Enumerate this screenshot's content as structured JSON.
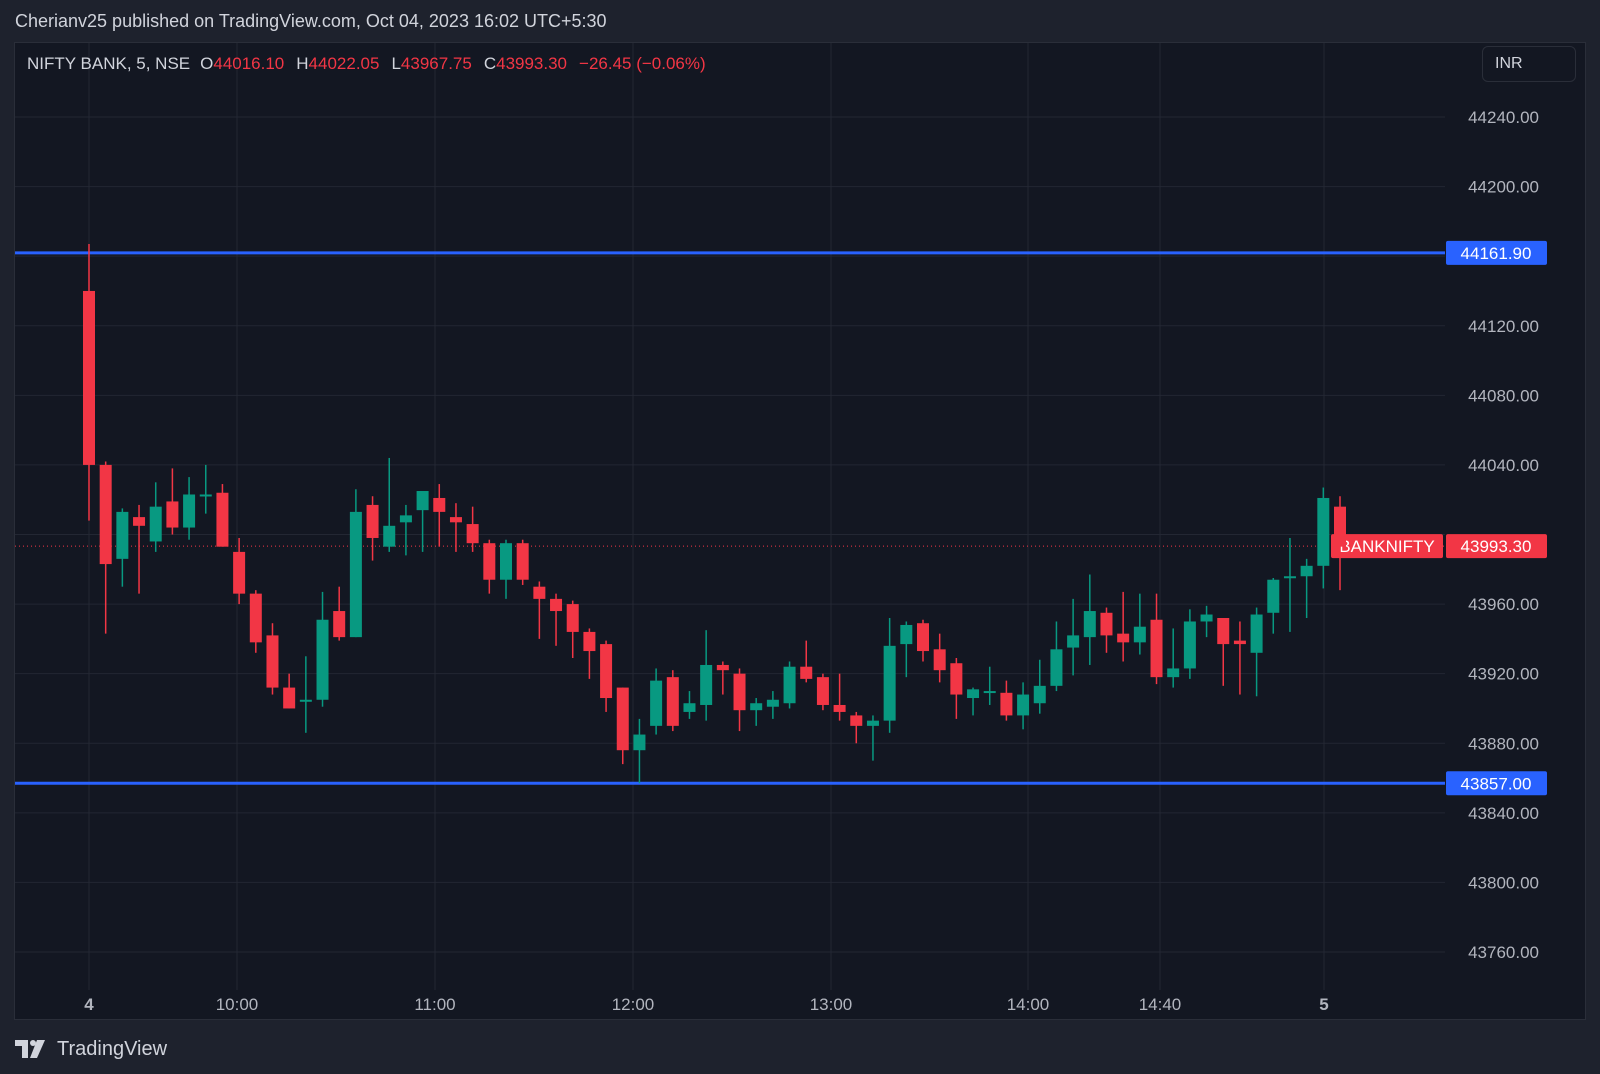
{
  "header": {
    "published": "Cherianv25 published on TradingView.com, Oct 04, 2023 16:02 UTC+5:30"
  },
  "legend": {
    "symbol": "NIFTY BANK, 5, NSE",
    "open_label": "O",
    "open": "44016.10",
    "high_label": "H",
    "high": "44022.05",
    "low_label": "L",
    "low": "43967.75",
    "close_label": "C",
    "close": "43993.30",
    "change": "−26.45 (−0.06%)"
  },
  "currency_button": "INR",
  "footer": {
    "brand": "TradingView"
  },
  "colors": {
    "background": "#131722",
    "grid": "#232733",
    "up": "#089981",
    "down": "#f23645",
    "level_line": "#2962ff",
    "text": "#d1d4dc"
  },
  "chart_data": {
    "type": "candlestick",
    "ylim": [
      43745,
      44280
    ],
    "y_ticks": [
      "44240.00",
      "44200.00",
      "44120.00",
      "44080.00",
      "44040.00",
      "43960.00",
      "43920.00",
      "43880.00",
      "43840.00",
      "43800.00",
      "43760.00"
    ],
    "x_ticks": [
      "4",
      "10:00",
      "11:00",
      "12:00",
      "13:00",
      "14:00",
      "14:40",
      "5"
    ],
    "horizontal_levels": [
      {
        "value": 44161.9,
        "label": "44161.90"
      },
      {
        "value": 43857.0,
        "label": "43857.00"
      }
    ],
    "last_price": {
      "value": 43993.3,
      "label": "43993.30",
      "symbol_label": "BANKNIFTY"
    },
    "candles": [
      {
        "o": 44140,
        "h": 44167,
        "l": 44008,
        "c": 44040
      },
      {
        "o": 44040,
        "h": 44042,
        "l": 43943,
        "c": 43983
      },
      {
        "o": 43986,
        "h": 44015,
        "l": 43970,
        "c": 44013
      },
      {
        "o": 44010,
        "h": 44017,
        "l": 43966,
        "c": 44005
      },
      {
        "o": 43996,
        "h": 44030,
        "l": 43990,
        "c": 44016
      },
      {
        "o": 44019,
        "h": 44038,
        "l": 44000,
        "c": 44004
      },
      {
        "o": 44004,
        "h": 44033,
        "l": 43997,
        "c": 44023
      },
      {
        "o": 44022,
        "h": 44040,
        "l": 44012,
        "c": 44023
      },
      {
        "o": 44024,
        "h": 44029,
        "l": 43993,
        "c": 43993
      },
      {
        "o": 43990,
        "h": 43998,
        "l": 43960,
        "c": 43966
      },
      {
        "o": 43966,
        "h": 43968,
        "l": 43932,
        "c": 43938
      },
      {
        "o": 43942,
        "h": 43949,
        "l": 43908,
        "c": 43912
      },
      {
        "o": 43912,
        "h": 43920,
        "l": 43900,
        "c": 43900
      },
      {
        "o": 43905,
        "h": 43930,
        "l": 43886,
        "c": 43905
      },
      {
        "o": 43905,
        "h": 43967,
        "l": 43901,
        "c": 43951
      },
      {
        "o": 43956,
        "h": 43970,
        "l": 43939,
        "c": 43941
      },
      {
        "o": 43941,
        "h": 44026,
        "l": 43941,
        "c": 44013
      },
      {
        "o": 44017,
        "h": 44022,
        "l": 43985,
        "c": 43998
      },
      {
        "o": 43993,
        "h": 44044,
        "l": 43990,
        "c": 44005
      },
      {
        "o": 44007,
        "h": 44017,
        "l": 43988,
        "c": 44011
      },
      {
        "o": 44014,
        "h": 44025,
        "l": 43990,
        "c": 44025
      },
      {
        "o": 44021,
        "h": 44029,
        "l": 43993,
        "c": 44013
      },
      {
        "o": 44010,
        "h": 44018,
        "l": 43990,
        "c": 44007
      },
      {
        "o": 44006,
        "h": 44016,
        "l": 43990,
        "c": 43995
      },
      {
        "o": 43995,
        "h": 43997,
        "l": 43966,
        "c": 43974
      },
      {
        "o": 43974,
        "h": 43997,
        "l": 43963,
        "c": 43995
      },
      {
        "o": 43995,
        "h": 43997,
        "l": 43971,
        "c": 43974
      },
      {
        "o": 43970,
        "h": 43973,
        "l": 43940,
        "c": 43963
      },
      {
        "o": 43963,
        "h": 43966,
        "l": 43936,
        "c": 43956
      },
      {
        "o": 43960,
        "h": 43962,
        "l": 43929,
        "c": 43944
      },
      {
        "o": 43944,
        "h": 43946,
        "l": 43917,
        "c": 43933
      },
      {
        "o": 43937,
        "h": 43939,
        "l": 43898,
        "c": 43906
      },
      {
        "o": 43912,
        "h": 43912,
        "l": 43868,
        "c": 43876
      },
      {
        "o": 43876,
        "h": 43894,
        "l": 43857,
        "c": 43885
      },
      {
        "o": 43890,
        "h": 43923,
        "l": 43885,
        "c": 43916
      },
      {
        "o": 43918,
        "h": 43922,
        "l": 43887,
        "c": 43890
      },
      {
        "o": 43898,
        "h": 43910,
        "l": 43894,
        "c": 43903
      },
      {
        "o": 43902,
        "h": 43945,
        "l": 43893,
        "c": 43925
      },
      {
        "o": 43925,
        "h": 43927,
        "l": 43908,
        "c": 43922
      },
      {
        "o": 43920,
        "h": 43923,
        "l": 43887,
        "c": 43899
      },
      {
        "o": 43899,
        "h": 43906,
        "l": 43890,
        "c": 43903
      },
      {
        "o": 43901,
        "h": 43910,
        "l": 43894,
        "c": 43905
      },
      {
        "o": 43903,
        "h": 43927,
        "l": 43900,
        "c": 43924
      },
      {
        "o": 43924,
        "h": 43939,
        "l": 43915,
        "c": 43917
      },
      {
        "o": 43918,
        "h": 43920,
        "l": 43899,
        "c": 43902
      },
      {
        "o": 43902,
        "h": 43920,
        "l": 43893,
        "c": 43898
      },
      {
        "o": 43896,
        "h": 43898,
        "l": 43880,
        "c": 43890
      },
      {
        "o": 43890,
        "h": 43896,
        "l": 43870,
        "c": 43893
      },
      {
        "o": 43893,
        "h": 43952,
        "l": 43886,
        "c": 43936
      },
      {
        "o": 43937,
        "h": 43950,
        "l": 43918,
        "c": 43948
      },
      {
        "o": 43949,
        "h": 43951,
        "l": 43927,
        "c": 43933
      },
      {
        "o": 43934,
        "h": 43943,
        "l": 43915,
        "c": 43922
      },
      {
        "o": 43926,
        "h": 43929,
        "l": 43894,
        "c": 43908
      },
      {
        "o": 43906,
        "h": 43912,
        "l": 43896,
        "c": 43911
      },
      {
        "o": 43910,
        "h": 43924,
        "l": 43902,
        "c": 43910
      },
      {
        "o": 43909,
        "h": 43916,
        "l": 43893,
        "c": 43896
      },
      {
        "o": 43896,
        "h": 43915,
        "l": 43888,
        "c": 43908
      },
      {
        "o": 43903,
        "h": 43928,
        "l": 43897,
        "c": 43913
      },
      {
        "o": 43913,
        "h": 43950,
        "l": 43910,
        "c": 43934
      },
      {
        "o": 43935,
        "h": 43963,
        "l": 43919,
        "c": 43942
      },
      {
        "o": 43941,
        "h": 43977,
        "l": 43925,
        "c": 43956
      },
      {
        "o": 43955,
        "h": 43958,
        "l": 43932,
        "c": 43942
      },
      {
        "o": 43943,
        "h": 43967,
        "l": 43927,
        "c": 43938
      },
      {
        "o": 43938,
        "h": 43966,
        "l": 43931,
        "c": 43947
      },
      {
        "o": 43951,
        "h": 43966,
        "l": 43914,
        "c": 43918
      },
      {
        "o": 43918,
        "h": 43946,
        "l": 43912,
        "c": 43923
      },
      {
        "o": 43923,
        "h": 43957,
        "l": 43917,
        "c": 43950
      },
      {
        "o": 43950,
        "h": 43959,
        "l": 43941,
        "c": 43954
      },
      {
        "o": 43952,
        "h": 43952,
        "l": 43913,
        "c": 43937
      },
      {
        "o": 43939,
        "h": 43950,
        "l": 43908,
        "c": 43937
      },
      {
        "o": 43932,
        "h": 43958,
        "l": 43907,
        "c": 43954
      },
      {
        "o": 43955,
        "h": 43975,
        "l": 43943,
        "c": 43974
      },
      {
        "o": 43976,
        "h": 43998,
        "l": 43944,
        "c": 43976
      },
      {
        "o": 43976,
        "h": 43986,
        "l": 43952,
        "c": 43982
      },
      {
        "o": 43982,
        "h": 44027,
        "l": 43969,
        "c": 44021
      },
      {
        "o": 44016,
        "h": 44022,
        "l": 43968,
        "c": 43993
      }
    ]
  }
}
